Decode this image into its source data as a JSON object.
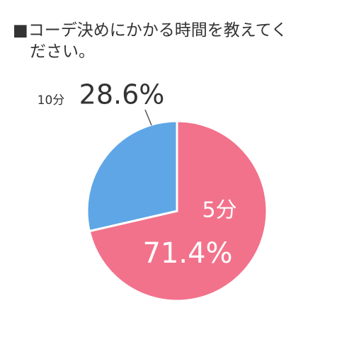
{
  "chart_data": {
    "type": "pie",
    "title": "■コーデ決めにかかる時間を教えてください。",
    "categories": [
      "5分",
      "10分"
    ],
    "values": [
      71.4,
      28.6
    ],
    "value_labels": [
      "71.4%",
      "28.6%"
    ],
    "colors": [
      "#f2728b",
      "#5ea6e6"
    ]
  }
}
